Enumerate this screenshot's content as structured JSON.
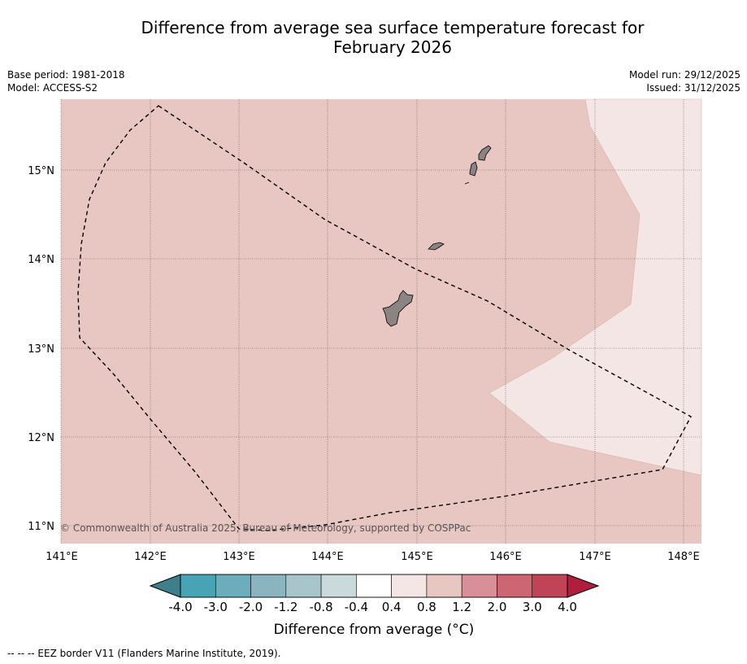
{
  "header": {
    "title_line1": "Difference from average sea surface temperature forecast for",
    "title_line2": "February 2026",
    "base_period": "Base period: 1981-2018",
    "model": "Model: ACCESS-S2",
    "model_run": "Model run: 29/12/2025",
    "issued": "Issued: 31/12/2025"
  },
  "map": {
    "credit": "© Commonwealth of Australia 2025, Bureau of Meteorology, supported by COSPPac",
    "lon_labels": [
      "141°E",
      "142°E",
      "143°E",
      "144°E",
      "145°E",
      "146°E",
      "147°E",
      "148°E"
    ],
    "lat_labels": [
      "15°N",
      "14°N",
      "13°N",
      "12°N",
      "11°N"
    ],
    "land_color": "#8c8482",
    "region_colors": {
      "band_0.8_1.2": "#e8c6c2",
      "band_0.4_0.8": "#f4e6e4"
    }
  },
  "colorbar": {
    "title": "Difference from average (°C)",
    "tick_labels": [
      "-4.0",
      "-3.0",
      "-2.0",
      "-1.2",
      "-0.8",
      "-0.4",
      "0.4",
      "0.8",
      "1.2",
      "2.0",
      "3.0",
      "4.0"
    ],
    "colors": [
      "#3f7f8c",
      "#48a4b4",
      "#6badba",
      "#8ab4c0",
      "#a8c6ca",
      "#c9d9dc",
      "#ffffff",
      "#f4e6e4",
      "#e8c6c2",
      "#d98f98",
      "#cc6673",
      "#c04455",
      "#b01e3d"
    ]
  },
  "footer": {
    "eez_note": "--  --  -- EEZ border V11 (Flanders Marine Institute, 2019)."
  }
}
